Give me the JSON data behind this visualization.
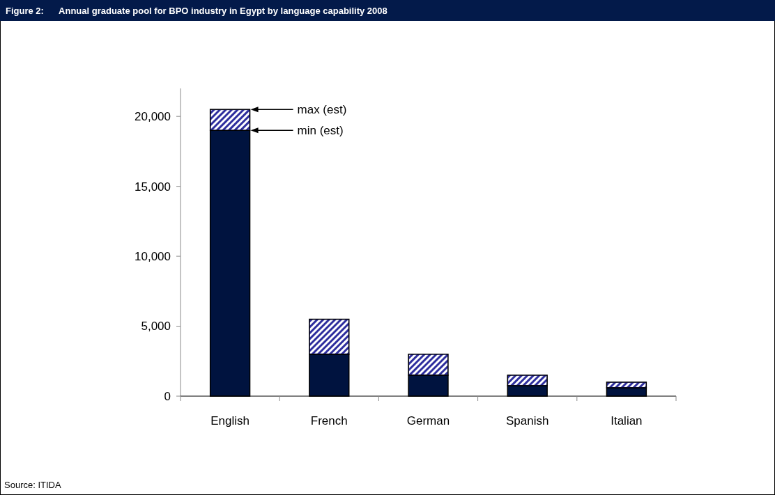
{
  "chart_data": {
    "type": "bar",
    "stacked": true,
    "title": "Figure 2:      Annual graduate pool for BPO industry in Egypt by language capability 2008",
    "categories": [
      "English",
      "French",
      "German",
      "Spanish",
      "Italian"
    ],
    "series": [
      {
        "color": "#00133f",
        "values": [
          19000,
          3000,
          1500,
          750,
          600
        ]
      },
      {
        "color": "#2e2e9e",
        "values": [
          1500,
          2500,
          1500,
          750,
          400
        ]
      }
    ],
    "ylim": [
      0,
      22000
    ],
    "yticks": [
      0,
      {
        "value": 5000,
        "label": "5,000"
      },
      {
        "value": 10000,
        "label": "10,000"
      },
      {
        "value": 15000,
        "label": "15,000"
      },
      {
        "value": 20000,
        "label": "20,000"
      }
    ],
    "grid": false,
    "annotations": [
      "max (est)",
      "min (est)",
      "Source: ITIDA"
    ]
  }
}
